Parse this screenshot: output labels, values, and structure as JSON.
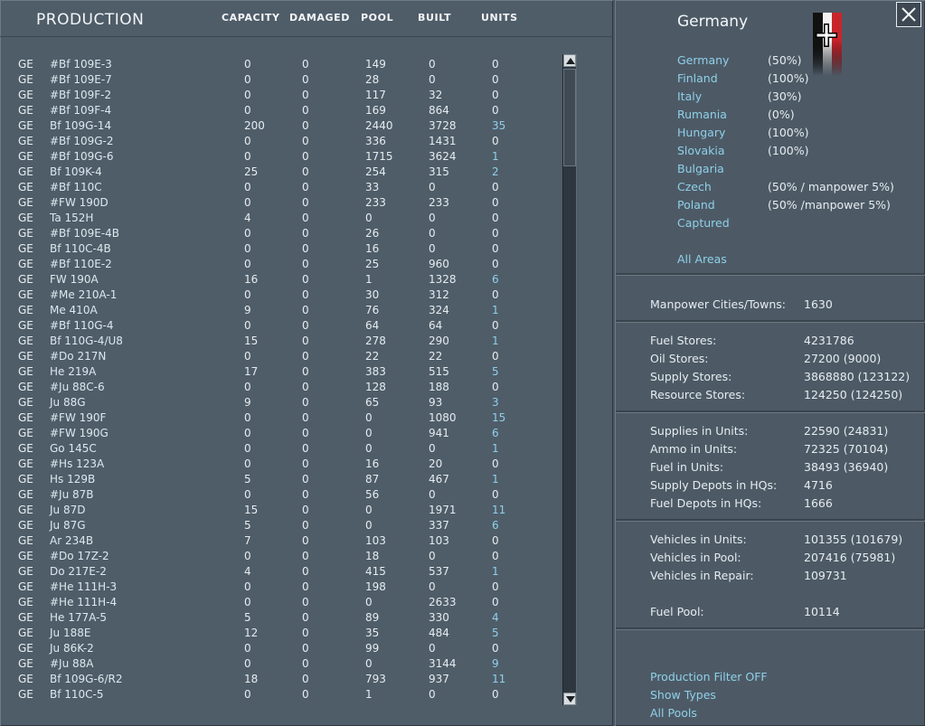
{
  "left": {
    "title": "PRODUCTION",
    "columns": [
      "CAPACITY",
      "DAMAGED",
      "POOL",
      "BUILT",
      "UNITS"
    ],
    "rows": [
      [
        "GE",
        "#Bf 109E-3",
        "0",
        "0",
        "149",
        "0",
        "0"
      ],
      [
        "GE",
        "#Bf 109E-7",
        "0",
        "0",
        "28",
        "0",
        "0"
      ],
      [
        "GE",
        "#Bf 109F-2",
        "0",
        "0",
        "117",
        "32",
        "0"
      ],
      [
        "GE",
        "#Bf 109F-4",
        "0",
        "0",
        "169",
        "864",
        "0"
      ],
      [
        "GE",
        "Bf 109G-14",
        "200",
        "0",
        "2440",
        "3728",
        "35"
      ],
      [
        "GE",
        "#Bf 109G-2",
        "0",
        "0",
        "336",
        "1431",
        "0"
      ],
      [
        "GE",
        "#Bf 109G-6",
        "0",
        "0",
        "1715",
        "3624",
        "1"
      ],
      [
        "GE",
        "Bf 109K-4",
        "25",
        "0",
        "254",
        "315",
        "2"
      ],
      [
        "GE",
        "#Bf 110C",
        "0",
        "0",
        "33",
        "0",
        "0"
      ],
      [
        "GE",
        "#FW 190D",
        "0",
        "0",
        "233",
        "233",
        "0"
      ],
      [
        "GE",
        "Ta 152H",
        "4",
        "0",
        "0",
        "0",
        "0"
      ],
      [
        "GE",
        "#Bf 109E-4B",
        "0",
        "0",
        "26",
        "0",
        "0"
      ],
      [
        "GE",
        "Bf 110C-4B",
        "0",
        "0",
        "16",
        "0",
        "0"
      ],
      [
        "GE",
        "#Bf 110E-2",
        "0",
        "0",
        "25",
        "960",
        "0"
      ],
      [
        "GE",
        "FW 190A",
        "16",
        "0",
        "1",
        "1328",
        "6"
      ],
      [
        "GE",
        "#Me 210A-1",
        "0",
        "0",
        "30",
        "312",
        "0"
      ],
      [
        "GE",
        "Me 410A",
        "9",
        "0",
        "76",
        "324",
        "1"
      ],
      [
        "GE",
        "#Bf 110G-4",
        "0",
        "0",
        "64",
        "64",
        "0"
      ],
      [
        "GE",
        "Bf 110G-4/U8",
        "15",
        "0",
        "278",
        "290",
        "1"
      ],
      [
        "GE",
        "#Do 217N",
        "0",
        "0",
        "22",
        "22",
        "0"
      ],
      [
        "GE",
        "He 219A",
        "17",
        "0",
        "383",
        "515",
        "5"
      ],
      [
        "GE",
        "#Ju 88C-6",
        "0",
        "0",
        "128",
        "188",
        "0"
      ],
      [
        "GE",
        "Ju 88G",
        "9",
        "0",
        "65",
        "93",
        "3"
      ],
      [
        "GE",
        "#FW 190F",
        "0",
        "0",
        "0",
        "1080",
        "15"
      ],
      [
        "GE",
        "#FW 190G",
        "0",
        "0",
        "0",
        "941",
        "6"
      ],
      [
        "GE",
        "Go 145C",
        "0",
        "0",
        "0",
        "0",
        "1"
      ],
      [
        "GE",
        "#Hs 123A",
        "0",
        "0",
        "16",
        "20",
        "0"
      ],
      [
        "GE",
        "Hs 129B",
        "5",
        "0",
        "87",
        "467",
        "1"
      ],
      [
        "GE",
        "#Ju 87B",
        "0",
        "0",
        "56",
        "0",
        "0"
      ],
      [
        "GE",
        "Ju 87D",
        "15",
        "0",
        "0",
        "1971",
        "11"
      ],
      [
        "GE",
        "Ju 87G",
        "5",
        "0",
        "0",
        "337",
        "6"
      ],
      [
        "GE",
        "Ar 234B",
        "7",
        "0",
        "103",
        "103",
        "0"
      ],
      [
        "GE",
        "#Do 17Z-2",
        "0",
        "0",
        "18",
        "0",
        "0"
      ],
      [
        "GE",
        "Do 217E-2",
        "4",
        "0",
        "415",
        "537",
        "1"
      ],
      [
        "GE",
        "#He 111H-3",
        "0",
        "0",
        "198",
        "0",
        "0"
      ],
      [
        "GE",
        "#He 111H-4",
        "0",
        "0",
        "0",
        "2633",
        "0"
      ],
      [
        "GE",
        "He 177A-5",
        "5",
        "0",
        "89",
        "330",
        "4"
      ],
      [
        "GE",
        "Ju 188E",
        "12",
        "0",
        "35",
        "484",
        "5"
      ],
      [
        "GE",
        "Ju 86K-2",
        "0",
        "0",
        "99",
        "0",
        "0"
      ],
      [
        "GE",
        "#Ju 88A",
        "0",
        "0",
        "0",
        "3144",
        "9"
      ],
      [
        "GE",
        "Bf 109G-6/R2",
        "18",
        "0",
        "793",
        "937",
        "11"
      ],
      [
        "GE",
        "Bf 110C-5",
        "0",
        "0",
        "1",
        "0",
        "0"
      ]
    ]
  },
  "right": {
    "country": "Germany",
    "close_symbol": "X",
    "allies": [
      {
        "name": "Germany",
        "value": "(50%)"
      },
      {
        "name": "Finland",
        "value": "(100%)"
      },
      {
        "name": "Italy",
        "value": "(30%)"
      },
      {
        "name": "Rumania",
        "value": "(0%)"
      },
      {
        "name": "Hungary",
        "value": "(100%)"
      },
      {
        "name": "Slovakia",
        "value": "(100%)"
      },
      {
        "name": "Bulgaria",
        "value": ""
      },
      {
        "name": "Czech",
        "value": "(50% / manpower 5%)"
      },
      {
        "name": "Poland",
        "value": "(50% /manpower 5%)"
      },
      {
        "name": "Captured",
        "value": ""
      }
    ],
    "all_areas": "All Areas",
    "manpower": {
      "label": "Manpower Cities/Towns:",
      "value": "1630"
    },
    "stores": [
      {
        "label": "Fuel Stores:",
        "value": "4231786"
      },
      {
        "label": "Oil Stores:",
        "value": "27200 (9000)"
      },
      {
        "label": "Supply Stores:",
        "value": "3868880 (123122)"
      },
      {
        "label": "Resource Stores:",
        "value": "124250 (124250)"
      }
    ],
    "units": [
      {
        "label": "Supplies in Units:",
        "value": "22590 (24831)"
      },
      {
        "label": "Ammo in Units:",
        "value": "72325 (70104)"
      },
      {
        "label": "Fuel in Units:",
        "value": "38493 (36940)"
      },
      {
        "label": "Supply Depots in HQs:",
        "value": "4716"
      },
      {
        "label": "Fuel Depots in HQs:",
        "value": "1666"
      }
    ],
    "vehicles": [
      {
        "label": "Vehicles in Units:",
        "value": "101355 (101679)"
      },
      {
        "label": "Vehicles in Pool:",
        "value": "207416 (75981)"
      },
      {
        "label": "Vehicles in Repair:",
        "value": "109731"
      }
    ],
    "fuel_pool": {
      "label": "Fuel Pool:",
      "value": "10114"
    },
    "links": [
      "Production Filter OFF",
      "Show Types",
      "All Pools"
    ]
  }
}
